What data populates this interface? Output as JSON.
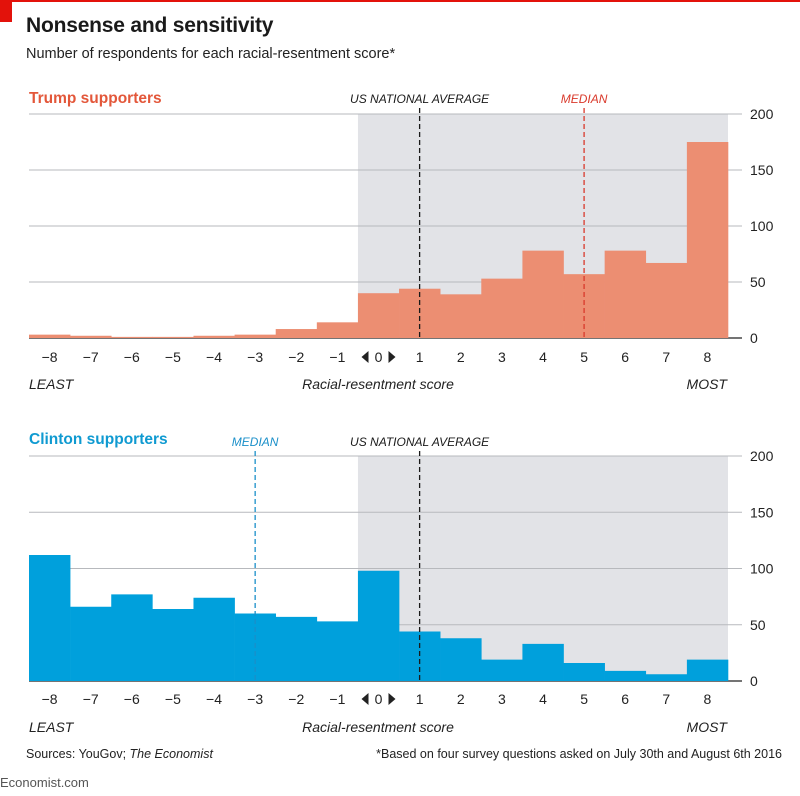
{
  "header": {
    "title": "Nonsense and sensitivity",
    "subtitle": "Number of respondents for each racial-resentment score*"
  },
  "footer": {
    "sources_prefix": "Sources: YouGov; ",
    "sources_italic": "The Economist",
    "footnote": "*Based on four survey questions  asked on July 30th and August 6th 2016",
    "brand": "Economist.com"
  },
  "chart_data": [
    {
      "type": "bar",
      "title": "Trump supporters",
      "color": "#ec8e72",
      "title_color": "#e3573a",
      "categories": [
        -8,
        -7,
        -6,
        -5,
        -4,
        -3,
        -2,
        -1,
        0,
        1,
        2,
        3,
        4,
        5,
        6,
        7,
        8
      ],
      "values": [
        3,
        2,
        1,
        1,
        2,
        3,
        8,
        14,
        40,
        44,
        39,
        53,
        78,
        57,
        78,
        67,
        175
      ],
      "ylim": [
        0,
        200
      ],
      "yticks": [
        0,
        50,
        100,
        150,
        200
      ],
      "xlabel": "Racial-resentment score",
      "x_left_label": "LEAST",
      "x_right_label": "MOST",
      "shaded_from": 0,
      "reference_lines": [
        {
          "label": "US NATIONAL AVERAGE",
          "x": 1,
          "color": "#1a1a1a"
        },
        {
          "label": "MEDIAN",
          "x": 5,
          "color": "#d9392b"
        }
      ]
    },
    {
      "type": "bar",
      "title": "Clinton supporters",
      "color": "#00a0dc",
      "title_color": "#0f9ad1",
      "categories": [
        -8,
        -7,
        -6,
        -5,
        -4,
        -3,
        -2,
        -1,
        0,
        1,
        2,
        3,
        4,
        5,
        6,
        7,
        8
      ],
      "values": [
        112,
        66,
        77,
        64,
        74,
        60,
        57,
        53,
        98,
        44,
        38,
        19,
        33,
        16,
        9,
        6,
        19
      ],
      "ylim": [
        0,
        200
      ],
      "yticks": [
        0,
        50,
        100,
        150,
        200
      ],
      "xlabel": "Racial-resentment score",
      "x_left_label": "LEAST",
      "x_right_label": "MOST",
      "shaded_from": 0,
      "reference_lines": [
        {
          "label": "MEDIAN",
          "x": -3,
          "color": "#1a8fc9"
        },
        {
          "label": "US NATIONAL AVERAGE",
          "x": 1,
          "color": "#1a1a1a"
        }
      ]
    }
  ]
}
